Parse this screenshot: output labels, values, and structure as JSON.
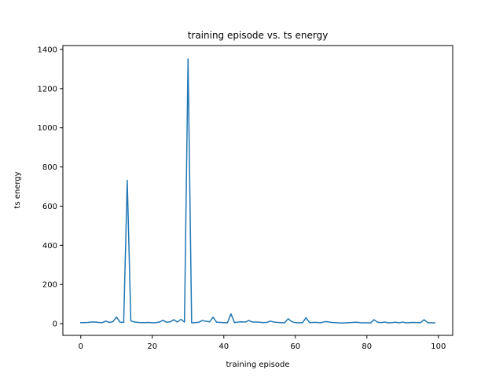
{
  "chart_data": {
    "type": "line",
    "title": "training episode vs. ts energy",
    "xlabel": "training episode",
    "ylabel": "ts energy",
    "xlim": [
      -5,
      104
    ],
    "ylim": [
      -60,
      1420
    ],
    "xticks": [
      0,
      20,
      40,
      60,
      80,
      100
    ],
    "yticks": [
      0,
      200,
      400,
      600,
      800,
      1000,
      1200,
      1400
    ],
    "grid": false,
    "series": [
      {
        "color": "#1f77b4",
        "x": [
          0,
          1,
          2,
          3,
          4,
          5,
          6,
          7,
          8,
          9,
          10,
          11,
          12,
          13,
          14,
          15,
          16,
          17,
          18,
          19,
          20,
          21,
          22,
          23,
          24,
          25,
          26,
          27,
          28,
          29,
          30,
          31,
          32,
          33,
          34,
          35,
          36,
          37,
          38,
          39,
          40,
          41,
          42,
          43,
          44,
          45,
          46,
          47,
          48,
          49,
          50,
          51,
          52,
          53,
          54,
          55,
          56,
          57,
          58,
          59,
          60,
          61,
          62,
          63,
          64,
          65,
          66,
          67,
          68,
          69,
          70,
          71,
          72,
          73,
          74,
          75,
          76,
          77,
          78,
          79,
          80,
          81,
          82,
          83,
          84,
          85,
          86,
          87,
          88,
          89,
          90,
          91,
          92,
          93,
          94,
          95,
          96,
          97,
          98,
          99
        ],
        "y": [
          5,
          5,
          6,
          8,
          8,
          6,
          5,
          13,
          6,
          10,
          34,
          7,
          6,
          732,
          14,
          8,
          6,
          5,
          5,
          6,
          4,
          5,
          8,
          17,
          7,
          9,
          20,
          8,
          22,
          8,
          1352,
          4,
          5,
          7,
          16,
          12,
          9,
          33,
          7,
          6,
          5,
          4,
          50,
          5,
          8,
          9,
          8,
          16,
          8,
          8,
          7,
          5,
          6,
          13,
          8,
          6,
          5,
          4,
          25,
          10,
          5,
          4,
          5,
          30,
          5,
          6,
          6,
          4,
          9,
          10,
          6,
          5,
          4,
          3,
          4,
          5,
          6,
          7,
          5,
          4,
          4,
          3,
          20,
          7,
          5,
          8,
          4,
          5,
          7,
          4,
          8,
          4,
          5,
          6,
          5,
          5,
          20,
          5,
          4,
          4
        ]
      }
    ]
  }
}
